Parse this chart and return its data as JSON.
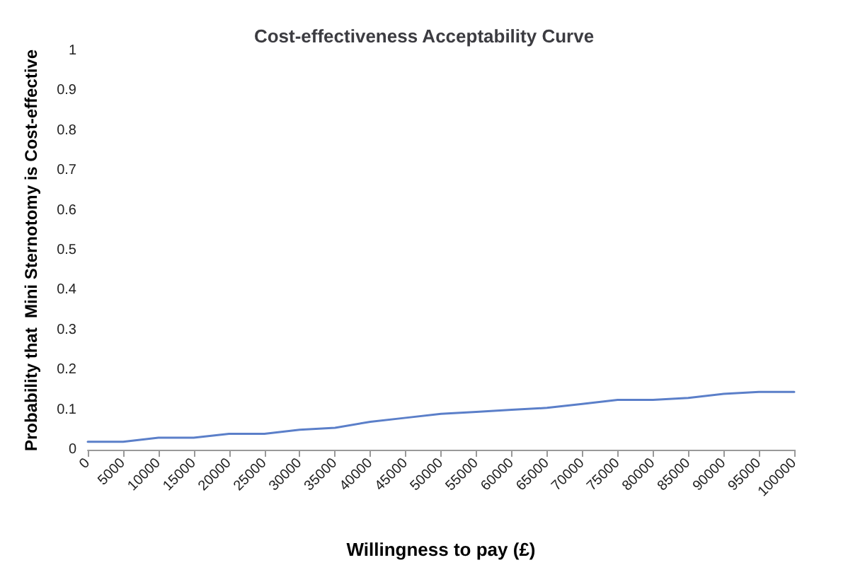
{
  "chart_data": {
    "type": "line",
    "title": "Cost-effectiveness Acceptability Curve",
    "xlabel": "Willingness to pay (£)",
    "ylabel": "Probability that  Mini Sternotomy is Cost-effective",
    "categories": [
      "0",
      "5000",
      "10000",
      "15000",
      "20000",
      "25000",
      "30000",
      "35000",
      "40000",
      "45000",
      "50000",
      "55000",
      "60000",
      "65000",
      "70000",
      "75000",
      "80000",
      "85000",
      "90000",
      "95000",
      "100000"
    ],
    "series": [
      {
        "color": "#5b7fc9",
        "values": [
          0.02,
          0.02,
          0.03,
          0.03,
          0.04,
          0.04,
          0.05,
          0.055,
          0.07,
          0.08,
          0.09,
          0.095,
          0.1,
          0.105,
          0.115,
          0.125,
          0.125,
          0.13,
          0.14,
          0.145,
          0.145
        ]
      }
    ],
    "ylim": [
      0,
      1
    ],
    "yticks": [
      0,
      0.1,
      0.2,
      0.3,
      0.4,
      0.5,
      0.6,
      0.7,
      0.8,
      0.9,
      1
    ],
    "grid": false,
    "marker": "none",
    "line_style": "solid"
  }
}
